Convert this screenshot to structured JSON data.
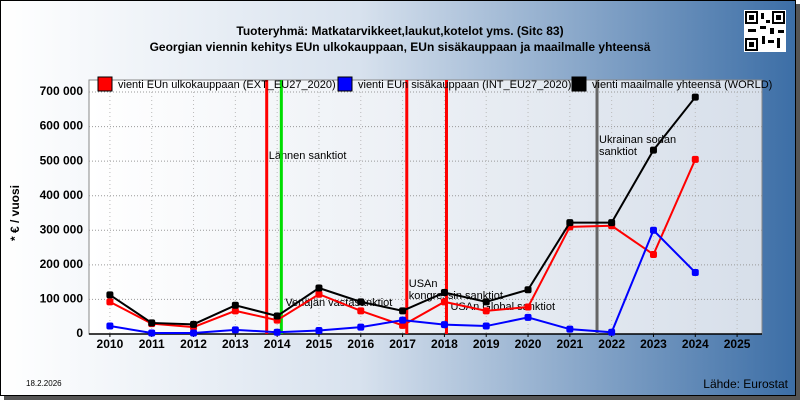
{
  "chart_data": {
    "type": "line",
    "title": "Tuoteryhmä: Matkatarvikkeet,laukut,kotelot yms. (Sitc 83)",
    "subtitle": "Georgian viennin kehitys EUn ulkokauppaan, EUn sisäkauppaan ja maailmalle yhteensä",
    "y_label": "* € / vuosi",
    "date": "18.2.2026",
    "source": "Lähde: Eurostat",
    "x": [
      2010,
      2011,
      2012,
      2013,
      2014,
      2015,
      2016,
      2017,
      2018,
      2019,
      2020,
      2021,
      2022,
      2023,
      2024,
      2025
    ],
    "xlim": [
      2009.5,
      2025.5
    ],
    "xticks": [
      2010,
      2011,
      2012,
      2013,
      2014,
      2015,
      2016,
      2017,
      2018,
      2019,
      2020,
      2021,
      2022,
      2023,
      2024,
      2025
    ],
    "ylim": [
      0,
      700000
    ],
    "yticks": [
      {
        "value": 0,
        "label": "0"
      },
      {
        "value": 100000,
        "label": "100 000"
      },
      {
        "value": 200000,
        "label": "200 000"
      },
      {
        "value": 300000,
        "label": "300 000"
      },
      {
        "value": 400000,
        "label": "400 000"
      },
      {
        "value": 500000,
        "label": "500 000"
      },
      {
        "value": 600000,
        "label": "600 000"
      },
      {
        "value": 700000,
        "label": "700 000"
      }
    ],
    "grid": true,
    "series": [
      {
        "name": "vienti EUn ulkokauppaan (EXT_EU27_2020)",
        "color": "#ff0000",
        "values": [
          93000,
          30000,
          20000,
          67000,
          40000,
          115000,
          67000,
          25000,
          93000,
          67000,
          78000,
          310000,
          313000,
          230000,
          505000,
          null
        ]
      },
      {
        "name": "vienti EUn sisäkauppaan (INT_EU27_2020)",
        "color": "#0000ff",
        "values": [
          23000,
          3000,
          3000,
          12000,
          5000,
          10000,
          20000,
          40000,
          27000,
          23000,
          48000,
          14000,
          5000,
          300000,
          178000,
          null
        ]
      },
      {
        "name": "vienti maailmalle yhteensä (WORLD)",
        "color": "#000000",
        "values": [
          113000,
          32000,
          28000,
          83000,
          52000,
          133000,
          93000,
          67000,
          120000,
          93000,
          128000,
          322000,
          322000,
          532000,
          685000,
          null
        ]
      }
    ],
    "events": [
      {
        "x": 2013.75,
        "color": "#ff0000",
        "label": [
          "Lännen sanktiot"
        ]
      },
      {
        "x": 2014.1,
        "color": "#00dd00",
        "label": [
          "Venäjän vastasanktiot"
        ]
      },
      {
        "x": 2017.1,
        "color": "#ff0000",
        "label": [
          "USAn",
          "kongressin sanktiot"
        ]
      },
      {
        "x": 2018.05,
        "color": "#ff0000",
        "label": [
          "USAn Global sanktiot"
        ]
      },
      {
        "x": 2021.65,
        "color": "#666666",
        "label": [
          "Ukrainan sodan",
          "sanktiot"
        ]
      }
    ]
  }
}
